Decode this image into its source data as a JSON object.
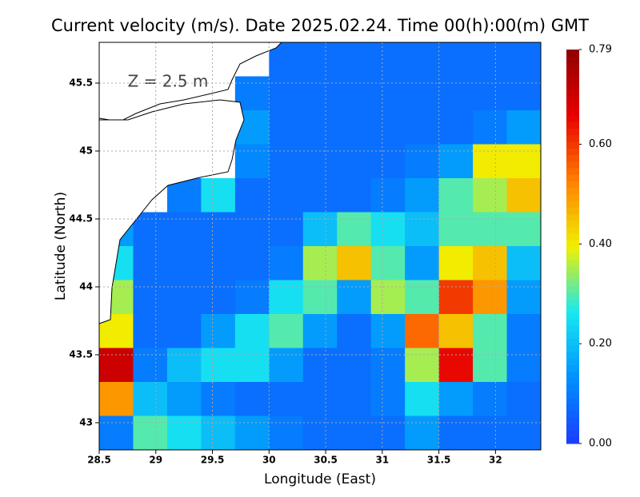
{
  "chart_data": {
    "type": "heatmap",
    "title": "Current velocity (m/s). Date 2025.02.24. Time 00(h):00(m) GMT",
    "annotation": "Z = 2.5 m",
    "x_label": "Longitude (East)",
    "y_label": "Latitude (North)",
    "xlim": [
      28.5,
      32.4
    ],
    "ylim": [
      42.8,
      45.8
    ],
    "xticks": [
      28.5,
      29,
      29.5,
      30,
      30.5,
      31,
      31.5,
      32
    ],
    "yticks": [
      43,
      43.5,
      44,
      44.5,
      45,
      45.5
    ],
    "grid": true,
    "x_edges": [
      28.5,
      28.8,
      29.1,
      29.4,
      29.7,
      30.0,
      30.3,
      30.6,
      30.9,
      31.2,
      31.5,
      31.8,
      32.1,
      32.4
    ],
    "y_edges": [
      45.8,
      45.55,
      45.3,
      45.05,
      44.8,
      44.55,
      44.3,
      44.05,
      43.8,
      43.55,
      43.3,
      43.05,
      42.8
    ],
    "values": [
      [
        null,
        null,
        null,
        null,
        null,
        0.08,
        0.08,
        0.08,
        0.08,
        0.08,
        0.08,
        0.08,
        0.08
      ],
      [
        null,
        null,
        null,
        null,
        0.1,
        0.08,
        0.08,
        0.08,
        0.08,
        0.08,
        0.08,
        0.08,
        0.08
      ],
      [
        null,
        null,
        null,
        null,
        0.15,
        0.08,
        0.08,
        0.08,
        0.08,
        0.08,
        0.08,
        0.1,
        0.15
      ],
      [
        null,
        null,
        null,
        null,
        0.12,
        0.08,
        0.08,
        0.08,
        0.08,
        0.1,
        0.15,
        0.4,
        0.4
      ],
      [
        null,
        null,
        0.1,
        0.25,
        0.08,
        0.08,
        0.08,
        0.08,
        0.1,
        0.15,
        0.3,
        0.35,
        0.45
      ],
      [
        0.15,
        0.08,
        0.08,
        0.08,
        0.08,
        0.08,
        0.2,
        0.3,
        0.25,
        0.2,
        0.3,
        0.3,
        0.3
      ],
      [
        0.25,
        0.08,
        0.08,
        0.08,
        0.08,
        0.1,
        0.35,
        0.45,
        0.3,
        0.15,
        0.4,
        0.45,
        0.2
      ],
      [
        0.35,
        0.08,
        0.08,
        0.08,
        0.1,
        0.25,
        0.3,
        0.15,
        0.35,
        0.3,
        0.6,
        0.5,
        0.15
      ],
      [
        0.4,
        0.08,
        0.08,
        0.15,
        0.25,
        0.3,
        0.15,
        0.08,
        0.15,
        0.55,
        0.45,
        0.3,
        0.1
      ],
      [
        0.7,
        0.1,
        0.2,
        0.25,
        0.25,
        0.15,
        0.08,
        0.08,
        0.1,
        0.35,
        0.65,
        0.3,
        0.1
      ],
      [
        0.5,
        0.2,
        0.15,
        0.1,
        0.08,
        0.08,
        0.08,
        0.08,
        0.1,
        0.25,
        0.15,
        0.1,
        0.08
      ],
      [
        0.1,
        0.3,
        0.25,
        0.2,
        0.15,
        0.1,
        0.08,
        0.08,
        0.08,
        0.15,
        0.08,
        0.08,
        0.08
      ]
    ],
    "clim": [
      0,
      0.79
    ],
    "colorscale": [
      "#1a3cff",
      "#0090ff",
      "#18e8f0",
      "#f0f000",
      "#ff8000",
      "#e80000",
      "#900000"
    ],
    "cticks": [
      {
        "value": 0,
        "label": "0.00"
      },
      {
        "value": 0.2,
        "label": "0.20"
      },
      {
        "value": 0.4,
        "label": "0.40"
      },
      {
        "value": 0.6,
        "label": "0.60"
      },
      0.79
    ]
  }
}
